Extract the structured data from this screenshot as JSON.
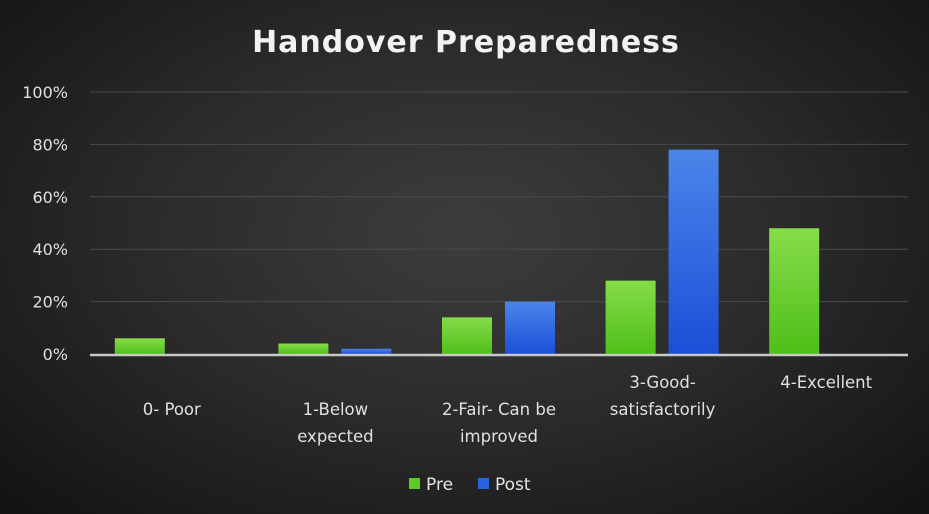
{
  "chart_data": {
    "type": "bar",
    "title": "Handover Preparedness",
    "categories": [
      "0- Poor",
      "1-Below expected",
      "2-Fair- Can be improved",
      "3-Good-satisfactorily",
      "4-Excellent"
    ],
    "category_lines": [
      [
        "0- Poor"
      ],
      [
        "1-Below",
        "expected"
      ],
      [
        "2-Fair- Can be",
        "improved"
      ],
      [
        "3-Good-",
        "satisfactorily"
      ],
      [
        "4-Excellent"
      ]
    ],
    "series": [
      {
        "name": "Pre",
        "color": "#5ccc24",
        "values": [
          6,
          4,
          14,
          28,
          48
        ]
      },
      {
        "name": "Post",
        "color": "#2a62e0",
        "values": [
          0,
          2,
          20,
          78,
          0
        ]
      }
    ],
    "ylim": [
      0,
      100
    ],
    "yticks": [
      "0%",
      "20%",
      "40%",
      "60%",
      "80%",
      "100%"
    ],
    "ytick_values": [
      0,
      20,
      40,
      60,
      80,
      100
    ],
    "xlabel": "",
    "ylabel": "",
    "grid": true,
    "legend": "bottom"
  }
}
